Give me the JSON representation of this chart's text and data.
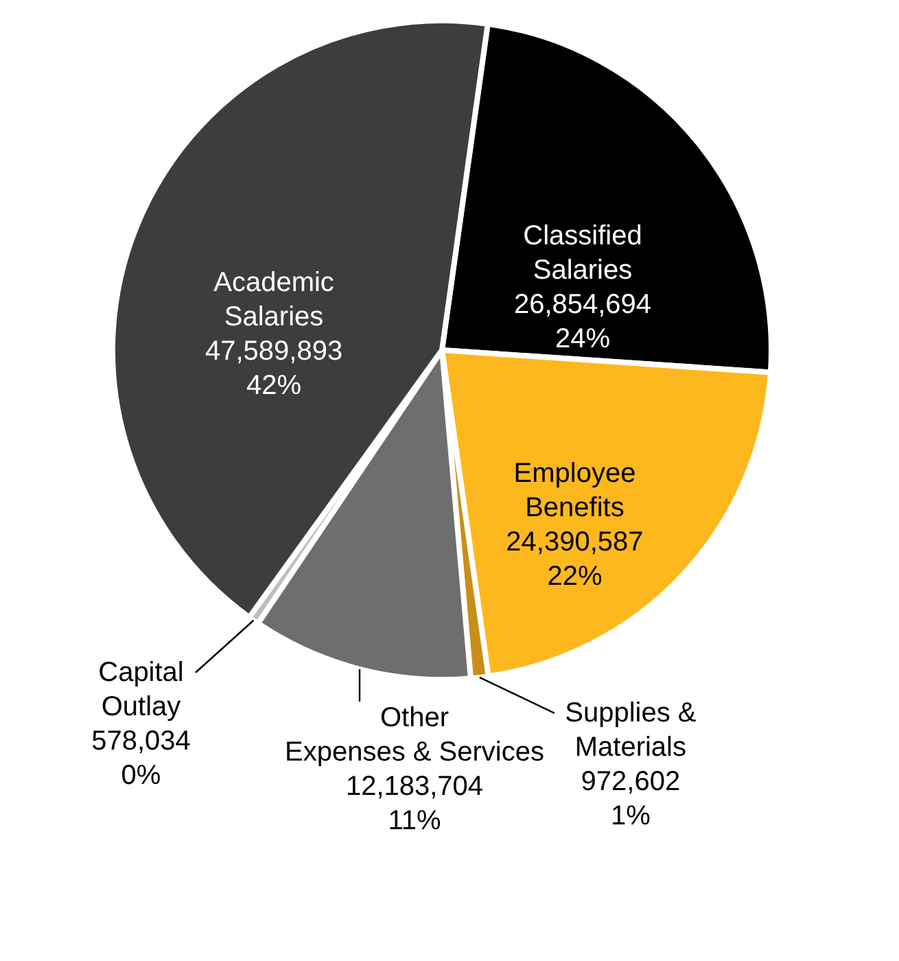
{
  "chart_data": {
    "type": "pie",
    "categories": [
      "Classified\nSalaries",
      "Employee\nBenefits",
      "Supplies &\nMaterials",
      "Other\nExpenses & Services",
      "Capital\nOutlay",
      "Academic\nSalaries"
    ],
    "values": [
      26854694,
      24390587,
      972602,
      12183704,
      578034,
      47589893
    ],
    "colors": [
      "#000000",
      "#fdb81e",
      "#c98e1a",
      "#6e6e6e",
      "#bdbdbd",
      "#3d3d3d"
    ],
    "value_labels": [
      "26,854,694\n24%",
      "24,390,587\n22%",
      "972,602\n1%",
      "12,183,704\n11%",
      "578,034\n0%",
      "47,589,893\n42%"
    ],
    "data_labels": true
  }
}
